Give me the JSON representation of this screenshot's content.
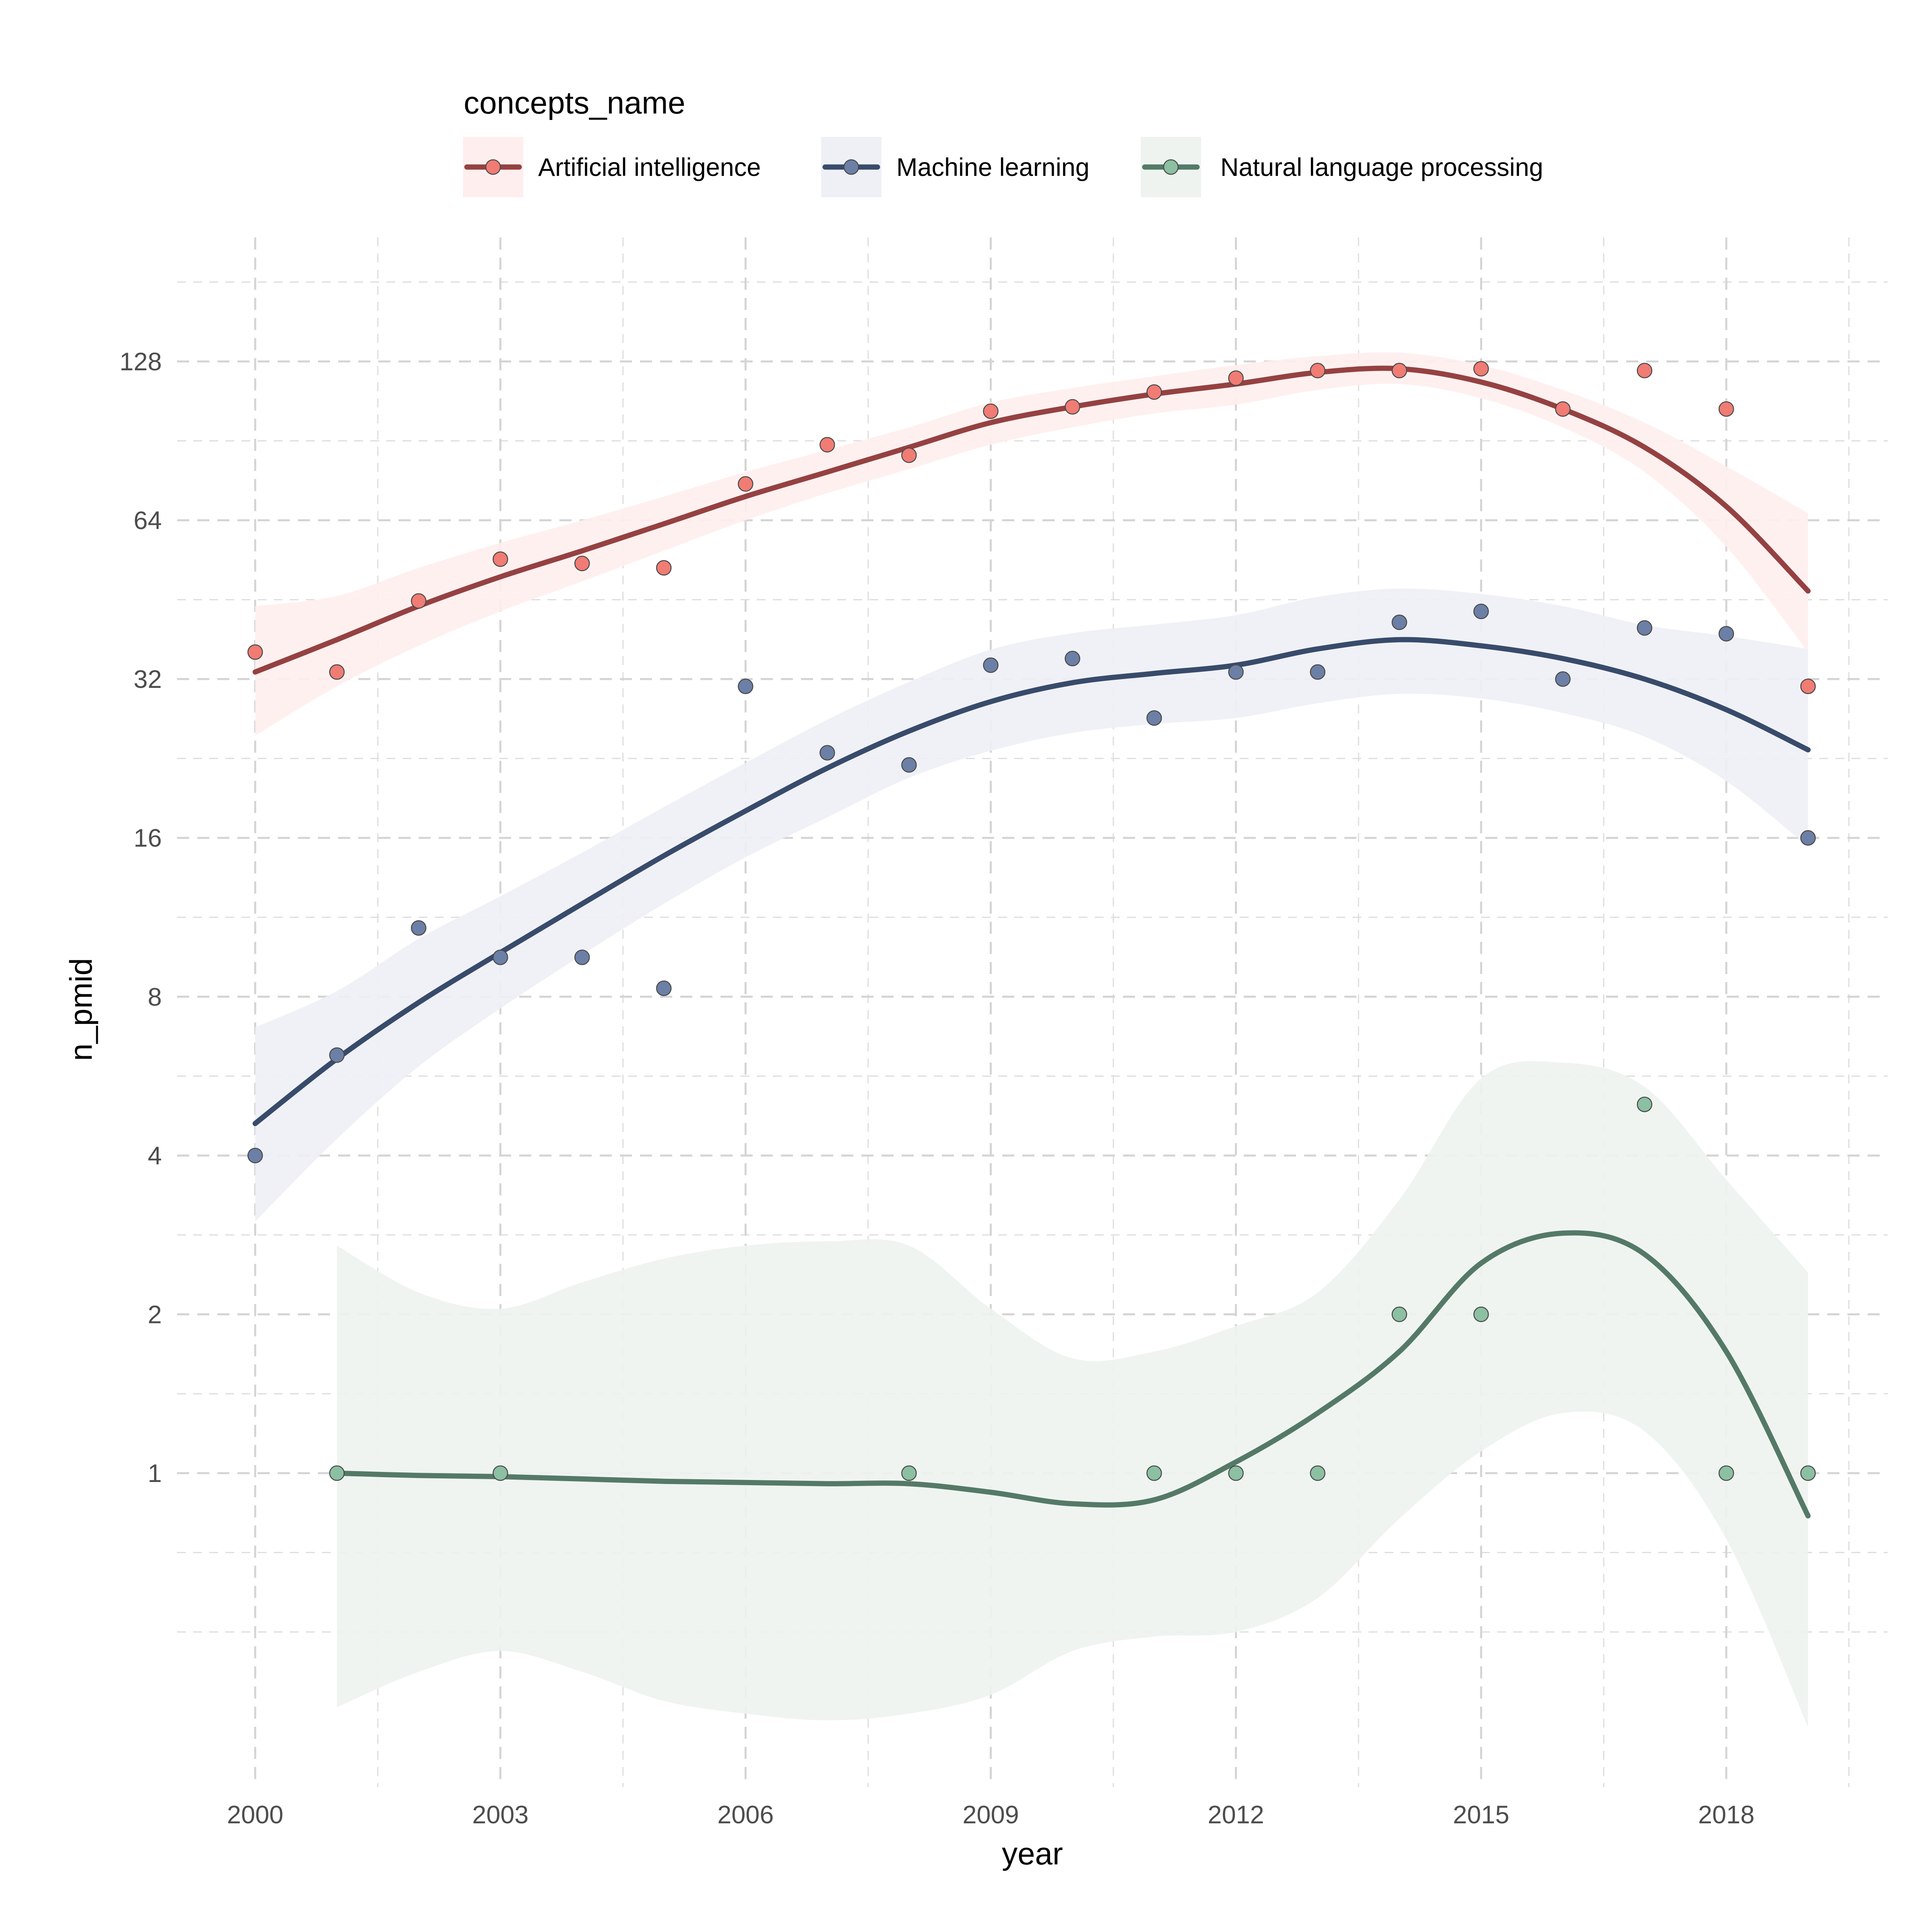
{
  "chart_data": {
    "type": "scatter",
    "xlabel": "year",
    "ylabel": "n_pmid",
    "y_scale": "log2",
    "xlim": [
      1999.0,
      2020.0
    ],
    "ylim": [
      0.22,
      220
    ],
    "x_ticks": [
      2000,
      2003,
      2006,
      2009,
      2012,
      2015,
      2018
    ],
    "x_tick_labels": [
      "2000",
      "2003",
      "2006",
      "2009",
      "2012",
      "2015",
      "2018"
    ],
    "y_ticks": [
      1,
      2,
      4,
      8,
      16,
      32,
      64,
      128
    ],
    "y_tick_labels": [
      "1",
      "2",
      "4",
      "8",
      "16",
      "32",
      "64",
      "128"
    ],
    "grid": true,
    "legend": {
      "title": "concepts_name",
      "position": "top"
    },
    "series": [
      {
        "name": "Artificial intelligence",
        "point_color": "#f07c74",
        "line_color": "#954141",
        "band_color": "#ffeeee",
        "points": {
          "x": [
            2000,
            2001,
            2002,
            2003,
            2004,
            2005,
            2006,
            2007,
            2008,
            2009,
            2010,
            2011,
            2012,
            2013,
            2014,
            2015,
            2016,
            2017,
            2018,
            2019
          ],
          "y": [
            36,
            33,
            45,
            54,
            53,
            52,
            75,
            89,
            85,
            103,
            105,
            112,
            119,
            123,
            123,
            124,
            104,
            123,
            104,
            31
          ]
        },
        "smooth": {
          "x": [
            2000,
            2001,
            2002,
            2003,
            2004,
            2005,
            2006,
            2007,
            2008,
            2009,
            2010,
            2011,
            2012,
            2013,
            2014,
            2015,
            2016,
            2017,
            2018,
            2019
          ],
          "y": [
            33,
            38,
            44,
            50,
            56,
            63,
            71,
            79,
            88,
            98,
            105,
            111,
            116,
            122,
            124,
            117,
            104,
            88,
            68,
            47
          ]
        },
        "band_low": [
          25,
          31,
          37,
          43,
          49,
          56,
          64,
          72,
          80,
          89,
          96,
          102,
          106,
          113,
          116,
          109,
          96,
          79,
          57,
          36
        ],
        "band_high": [
          44,
          46,
          52,
          58,
          64,
          71,
          79,
          87,
          96,
          107,
          114,
          120,
          126,
          131,
          133,
          126,
          113,
          98,
          81,
          66
        ]
      },
      {
        "name": "Machine learning",
        "point_color": "#6c7fa6",
        "line_color": "#384b6b",
        "band_color": "#eef0f6",
        "points": {
          "x": [
            2000,
            2001,
            2002,
            2003,
            2004,
            2005,
            2006,
            2007,
            2008,
            2009,
            2010,
            2011,
            2012,
            2013,
            2014,
            2015,
            2016,
            2017,
            2018,
            2019
          ],
          "y": [
            4,
            6.2,
            10.8,
            9.5,
            9.5,
            8.3,
            31,
            23.2,
            22,
            34,
            35,
            27,
            33,
            33,
            41,
            43,
            32,
            40,
            39,
            16
          ]
        },
        "smooth": {
          "x": [
            2000,
            2001,
            2002,
            2003,
            2004,
            2005,
            2006,
            2007,
            2008,
            2009,
            2010,
            2011,
            2012,
            2013,
            2014,
            2015,
            2016,
            2017,
            2018,
            2019
          ],
          "y": [
            4.6,
            6.1,
            7.8,
            9.7,
            12,
            14.8,
            18,
            21.7,
            25.5,
            29,
            31.5,
            32.8,
            34,
            36.5,
            38,
            37,
            35,
            32,
            28,
            23.5
          ]
        },
        "band_low": [
          3,
          4.3,
          5.9,
          7.6,
          9.6,
          12,
          14.7,
          17.5,
          20.8,
          23.4,
          25.3,
          26.3,
          27,
          28.8,
          30,
          29.4,
          27.6,
          24.9,
          20.5,
          15.4
        ],
        "band_high": [
          7,
          8.2,
          10.3,
          12.4,
          15,
          18.3,
          22.2,
          26.8,
          31.6,
          36.4,
          39.1,
          40.6,
          42.3,
          45.8,
          47.5,
          46.4,
          44,
          40.5,
          38.6,
          36.5
        ]
      },
      {
        "name": "Natural language processing",
        "point_color": "#8cc0a2",
        "line_color": "#547a67",
        "band_color": "#eef3f0",
        "points": {
          "x": [
            2001,
            2003,
            2008,
            2011,
            2012,
            2013,
            2014,
            2015,
            2017,
            2018,
            2019
          ],
          "y": [
            1,
            1,
            1,
            1,
            1,
            1,
            2,
            2,
            5,
            1,
            1
          ]
        },
        "smooth": {
          "x": [
            2001,
            2002,
            2003,
            2004,
            2005,
            2006,
            2007,
            2008,
            2009,
            2010,
            2011,
            2012,
            2013,
            2014,
            2015,
            2016,
            2017,
            2018,
            2019
          ],
          "y": [
            1,
            0.99,
            0.985,
            0.975,
            0.965,
            0.96,
            0.955,
            0.955,
            0.92,
            0.875,
            0.89,
            1.05,
            1.3,
            1.7,
            2.5,
            2.85,
            2.6,
            1.7,
            0.83
          ]
        },
        "band_low": [
          0.36,
          0.42,
          0.46,
          0.42,
          0.37,
          0.35,
          0.34,
          0.35,
          0.38,
          0.46,
          0.49,
          0.5,
          0.58,
          0.82,
          1.1,
          1.3,
          1.2,
          0.75,
          0.33
        ],
        "band_high": [
          2.7,
          2.2,
          2.05,
          2.3,
          2.55,
          2.7,
          2.75,
          2.7,
          2.05,
          1.65,
          1.7,
          1.9,
          2.2,
          3.3,
          5.6,
          6,
          5.4,
          3.6,
          2.4
        ]
      }
    ]
  }
}
